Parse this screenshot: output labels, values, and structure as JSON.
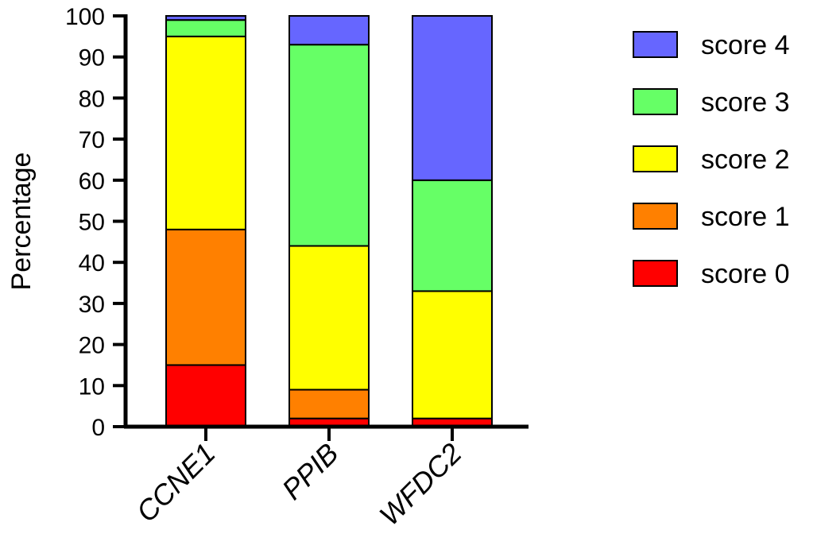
{
  "chart_data": {
    "type": "bar",
    "stacked": true,
    "categories": [
      "CCNE1",
      "PPIB",
      "WFDC2"
    ],
    "series": [
      {
        "name": "score 0",
        "color": "#ff0000",
        "values": [
          15,
          2,
          2
        ]
      },
      {
        "name": "score 1",
        "color": "#ff8000",
        "values": [
          33,
          7,
          0
        ]
      },
      {
        "name": "score 2",
        "color": "#ffff00",
        "values": [
          47,
          35,
          31
        ]
      },
      {
        "name": "score 3",
        "color": "#66ff66",
        "values": [
          4,
          49,
          27
        ]
      },
      {
        "name": "score 4",
        "color": "#6666ff",
        "values": [
          1,
          7,
          40
        ]
      }
    ],
    "ylabel": "Percentage",
    "ylim": [
      0,
      100
    ],
    "yticks": [
      "0",
      "10",
      "20",
      "30",
      "40",
      "50",
      "60",
      "70",
      "80",
      "90",
      "100"
    ],
    "grid": false,
    "legend": "right"
  }
}
